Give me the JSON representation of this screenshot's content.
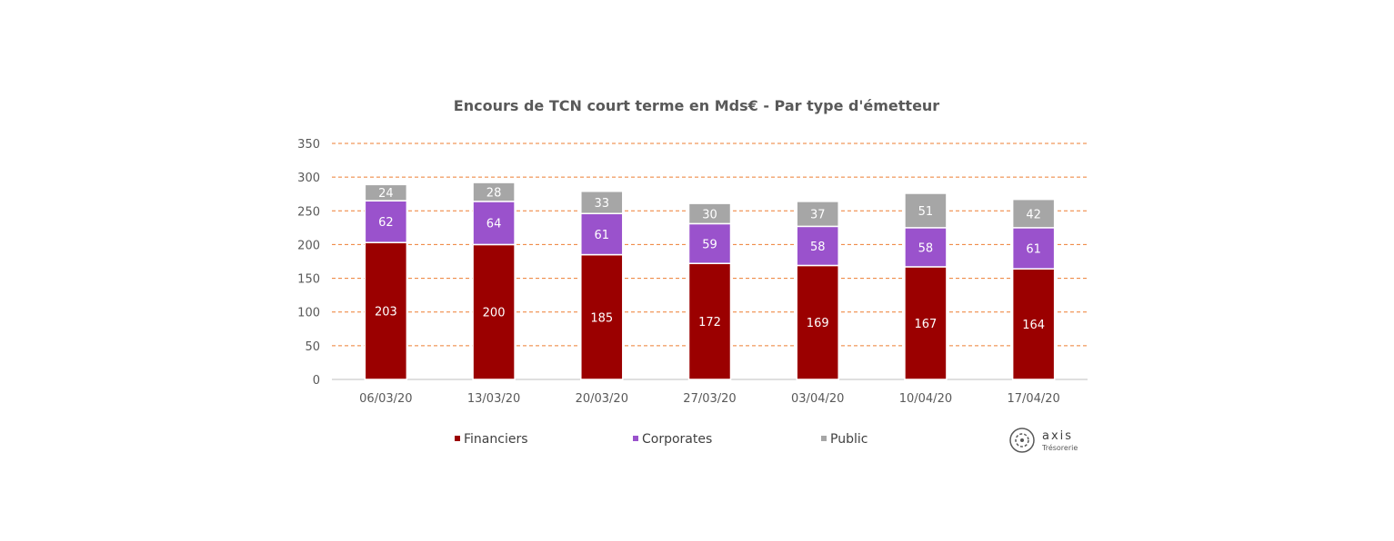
{
  "chart_data": {
    "type": "bar",
    "stacked": true,
    "title": "Encours de TCN court terme en Mds€ - Par type d'émetteur",
    "categories": [
      "06/03/20",
      "13/03/20",
      "20/03/20",
      "27/03/20",
      "03/04/20",
      "10/04/20",
      "17/04/20"
    ],
    "series": [
      {
        "name": "Financiers",
        "color": "#9b0000",
        "values": [
          203,
          200,
          185,
          172,
          169,
          167,
          164
        ]
      },
      {
        "name": "Corporates",
        "color": "#9a52cc",
        "values": [
          62,
          64,
          61,
          59,
          58,
          58,
          61
        ]
      },
      {
        "name": "Public",
        "color": "#a6a6a6",
        "values": [
          24,
          28,
          33,
          30,
          37,
          51,
          42
        ]
      }
    ],
    "ylim": [
      0,
      350
    ],
    "yticks": [
      0,
      50,
      100,
      150,
      200,
      250,
      300,
      350
    ],
    "grid": true,
    "grid_color": "#ed7d31",
    "legend_position": "bottom"
  },
  "logo": {
    "name": "axis",
    "subtitle": "Trésorerie"
  }
}
